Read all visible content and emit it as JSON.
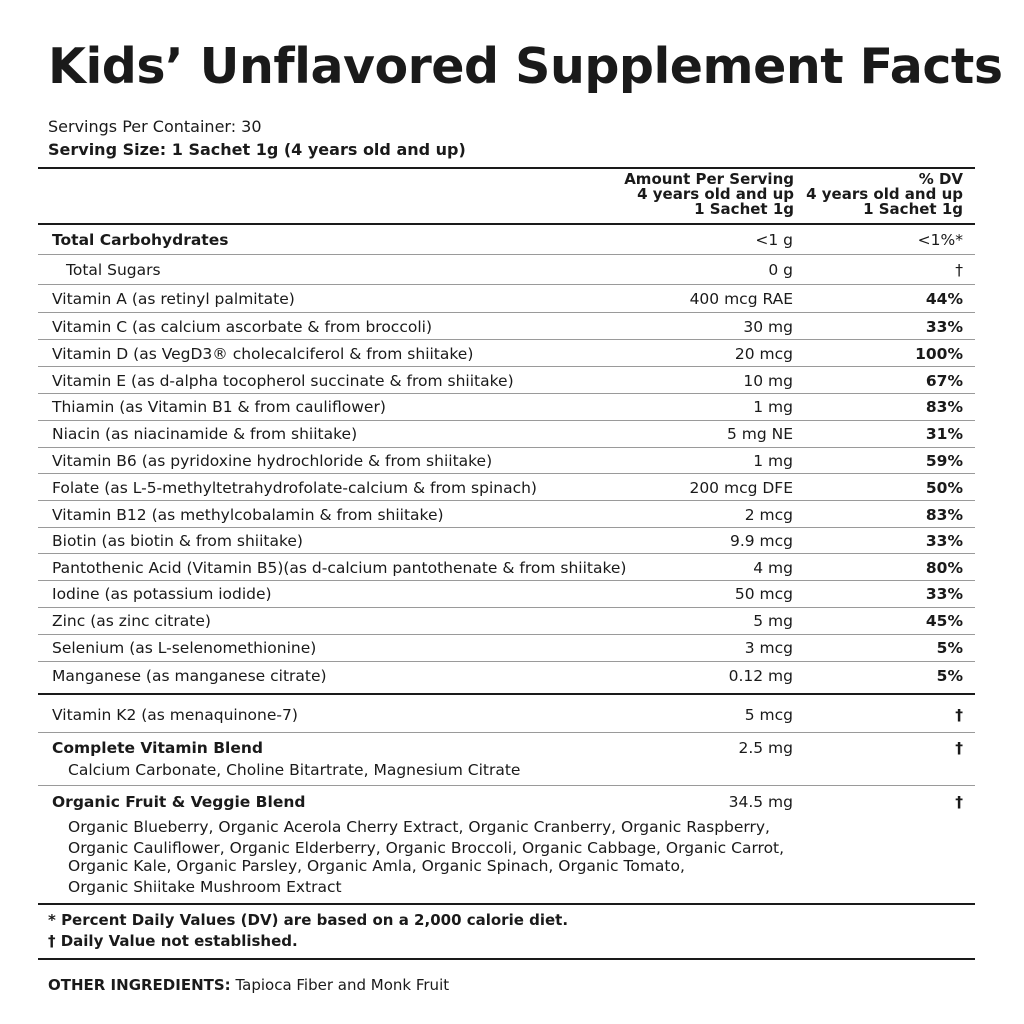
{
  "title": "Kids’ Unflavored Supplement Facts",
  "servings_per_container": "Servings Per Container: 30",
  "serving_size": "Serving Size: 1 Sachet 1g (4 years old and up)",
  "header": {
    "amount": [
      "Amount Per Serving",
      "4 years old and up",
      "1 Sachet 1g"
    ],
    "dv": [
      "% DV",
      "4 years old and up",
      "1 Sachet 1g"
    ]
  },
  "rows": [
    {
      "name": "Total Carbohydrates",
      "amount": "<1 g",
      "dv": "<1%*"
    },
    {
      "name": "Total Sugars",
      "amount": "0 g",
      "dv": "†"
    },
    {
      "name": "Vitamin A (as retinyl palmitate)",
      "amount": "400 mcg RAE",
      "dv": "44%"
    },
    {
      "name": "Vitamin C (as calcium ascorbate & from broccoli)",
      "amount": "30 mg",
      "dv": "33%"
    },
    {
      "name": "Vitamin D (as VegD3® cholecalciferol & from shiitake)",
      "amount": "20 mcg",
      "dv": "100%"
    },
    {
      "name": "Vitamin E (as d-alpha tocopherol succinate & from shiitake)",
      "amount": "10 mg",
      "dv": "67%"
    },
    {
      "name": "Thiamin (as Vitamin B1 & from cauliflower)",
      "amount": "1 mg",
      "dv": "83%"
    },
    {
      "name": "Niacin (as niacinamide & from shiitake)",
      "amount": "5 mg NE",
      "dv": "31%"
    },
    {
      "name": "Vitamin B6 (as pyridoxine hydrochloride & from shiitake)",
      "amount": "1 mg",
      "dv": "59%"
    },
    {
      "name": "Folate (as L-5-methyltetrahydrofolate-calcium & from spinach)",
      "amount": "200 mcg DFE",
      "dv": "50%"
    },
    {
      "name": "Vitamin B12 (as methylcobalamin & from shiitake)",
      "amount": "2 mcg",
      "dv": "83%"
    },
    {
      "name": "Biotin (as biotin & from shiitake)",
      "amount": "9.9 mcg",
      "dv": "33%"
    },
    {
      "name": "Pantothenic Acid (Vitamin B5)(as d-calcium pantothenate & from shiitake)",
      "amount": "4 mg",
      "dv": "80%"
    },
    {
      "name": "Iodine (as potassium iodide)",
      "amount": "50 mcg",
      "dv": "33%"
    },
    {
      "name": "Zinc (as zinc citrate)",
      "amount": "5 mg",
      "dv": "45%"
    },
    {
      "name": "Selenium (as L-selenomethionine)",
      "amount": "3 mcg",
      "dv": "5%"
    },
    {
      "name": "Manganese (as manganese citrate)",
      "amount": "0.12 mg",
      "dv": "5%"
    }
  ],
  "vitamin_k2": {
    "name": "Vitamin K2 (as menaquinone-7)",
    "amount": "5 mcg",
    "dv": "†"
  },
  "complete_blend": {
    "name": "Complete Vitamin Blend",
    "amount": "2.5 mg",
    "dv": "†",
    "ingredients": "Calcium Carbonate, Choline Bitartrate, Magnesium Citrate"
  },
  "fruit_veggie_blend": {
    "name": "Organic Fruit & Veggie Blend",
    "amount": "34.5 mg",
    "dv": "†",
    "ingredients": [
      "Organic Blueberry, Organic Acerola Cherry Extract, Organic Cranberry, Organic Raspberry,",
      "Organic Cauliflower, Organic Elderberry, Organic Broccoli, Organic Cabbage, Organic Carrot,",
      "Organic Kale, Organic Parsley, Organic Amla, Organic Spinach, Organic Tomato,",
      "Organic Shiitake Mushroom Extract"
    ]
  },
  "footnotes": [
    "* Percent Daily Values (DV) are based on a 2,000 calorie diet.",
    "† Daily Value not established."
  ],
  "other_ingredients": {
    "label": "OTHER INGREDIENTS:",
    "text": "Tapioca Fiber and Monk Fruit"
  }
}
